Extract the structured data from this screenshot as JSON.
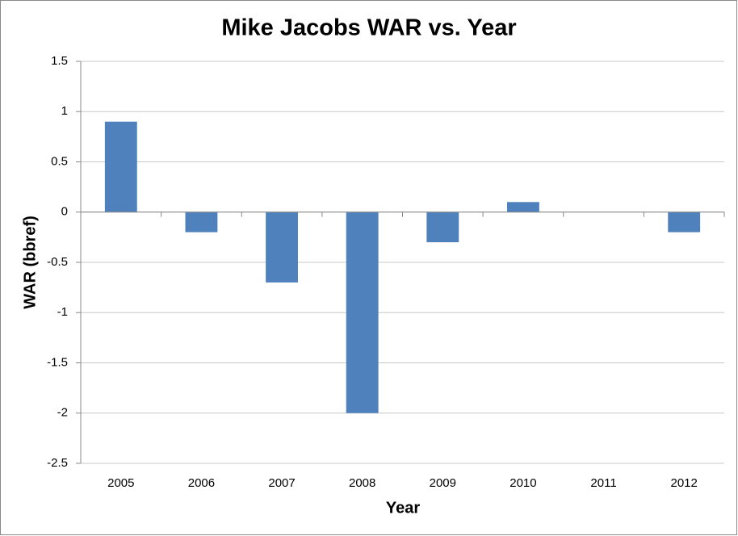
{
  "chart_data": {
    "type": "bar",
    "title": "Mike Jacobs WAR vs. Year",
    "y_label": "WAR (bbref)",
    "x_label": "Year",
    "categories": [
      "2005",
      "2006",
      "2007",
      "2008",
      "2009",
      "2010",
      "2011",
      "2012"
    ],
    "values": [
      0.9,
      -0.2,
      -0.7,
      -2.0,
      -0.3,
      0.1,
      0,
      -0.2
    ],
    "color": "#4f81bd",
    "ylim": [
      -2.5,
      1.5
    ],
    "yticks": [
      -2.5,
      -2,
      -1.5,
      -1,
      -0.5,
      0,
      0.5,
      1,
      1.5
    ],
    "grid": true
  }
}
